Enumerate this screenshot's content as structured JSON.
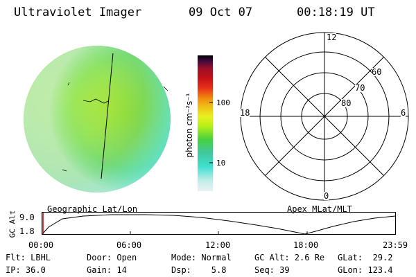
{
  "header": {
    "instrument": "Ultraviolet Imager",
    "date": "09 Oct 07",
    "time": "00:18:19 UT"
  },
  "imager": {
    "projection_label": "Geographic Lat/Lon",
    "colors": {
      "disk_main": "#7fd64a",
      "disk_bright": "#c6ec18",
      "disk_cyan": "#5fe0c8",
      "disk_pale": "#bfece4"
    }
  },
  "colorbar": {
    "unit_label": "photon cm⁻²s⁻¹",
    "tick_100": "100",
    "tick_10": "10",
    "stops": [
      "#e8f2f2",
      "#c0ece8",
      "#40e0d0",
      "#40c8a0",
      "#48d040",
      "#b8f018",
      "#e8f020",
      "#f0c018",
      "#f09010",
      "#e83018",
      "#c01018",
      "#a01028",
      "#400840",
      "#000000"
    ]
  },
  "polar": {
    "label": "Apex MLat/MLT",
    "mlt_top": "12",
    "mlt_right": "6",
    "mlt_bottom": "0",
    "mlt_left": "18",
    "lat_60": "60",
    "lat_70": "70",
    "lat_80": "80"
  },
  "altitude_plot": {
    "axis_label": "GC Alt",
    "y_max": "9.0",
    "y_min": "1.8",
    "x_ticks": [
      "00:00",
      "06:00",
      "12:00",
      "18:00",
      "23:59"
    ],
    "current_marker_color": "#cc0000"
  },
  "info": {
    "filter": "Flt: LBHL",
    "ip": "IP: 36.0",
    "door": "Door: Open",
    "gain": "Gain: 14",
    "mode": "Mode: Normal",
    "dsp": "Dsp:    5.8",
    "gc_alt": "GC Alt: 2.6 Re",
    "seq": "Seq: 39",
    "glat": "GLat:  29.2",
    "glon": "GLon: 123.4"
  }
}
